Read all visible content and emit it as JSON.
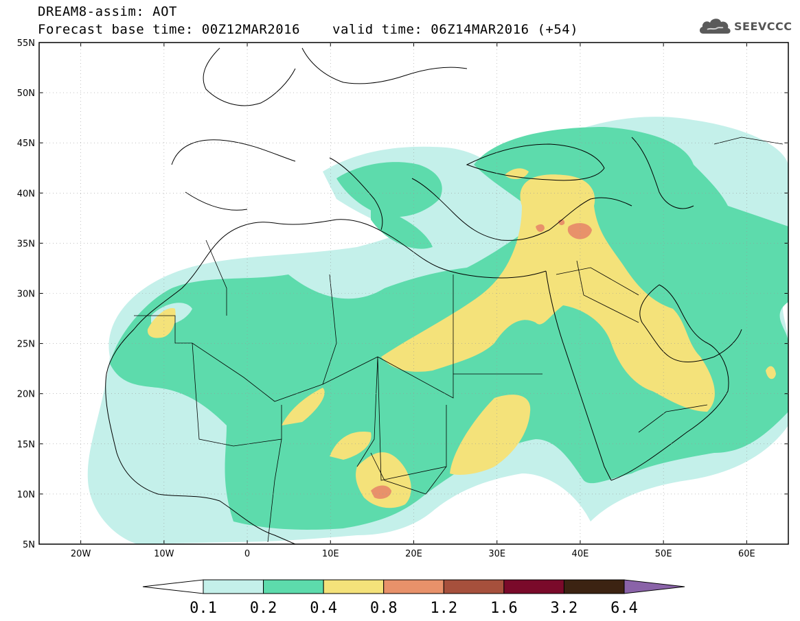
{
  "header": {
    "line1": "DREAM8-assim: AOT",
    "line2": "Forecast base time: 00Z12MAR2016",
    "valid": "valid time: 06Z14MAR2016 (+54)"
  },
  "logo": {
    "text": "SEEVCCC",
    "icon": "cloud-icon"
  },
  "map": {
    "lon_range": [
      -25,
      65
    ],
    "lat_range": [
      5,
      55
    ],
    "lat_labels": [
      "55N",
      "50N",
      "45N",
      "40N",
      "35N",
      "30N",
      "25N",
      "20N",
      "15N",
      "10N",
      "5N"
    ],
    "lon_labels": [
      "20W",
      "10W",
      "0",
      "10E",
      "20E",
      "30E",
      "40E",
      "50E",
      "60E"
    ]
  },
  "colorbar": {
    "labels": [
      "0.1",
      "0.2",
      "0.4",
      "0.8",
      "1.2",
      "1.6",
      "3.2",
      "6.4"
    ],
    "colors": [
      "#ffffff",
      "#c4f0ea",
      "#5ddbac",
      "#f4e27a",
      "#e8916a",
      "#a6503c",
      "#7a0a2a",
      "#3c2312",
      "#8a63a8"
    ]
  }
}
